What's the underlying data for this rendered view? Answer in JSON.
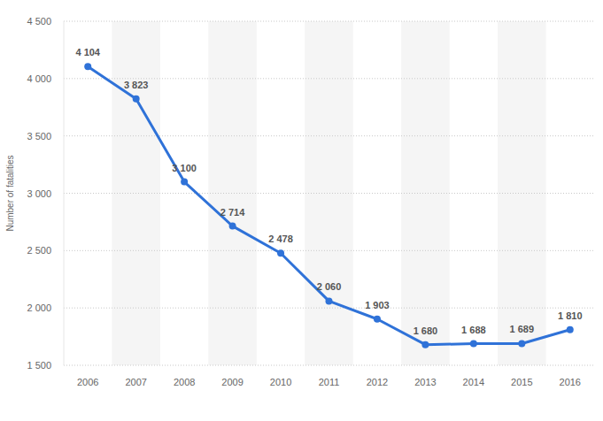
{
  "chart_data": {
    "type": "line",
    "y_label": "Number of fatalities",
    "categories": [
      "2006",
      "2007",
      "2008",
      "2009",
      "2010",
      "2011",
      "2012",
      "2013",
      "2014",
      "2015",
      "2016"
    ],
    "values": [
      4104,
      3823,
      3100,
      2714,
      2478,
      2060,
      1903,
      1680,
      1688,
      1689,
      1810
    ],
    "value_labels": [
      "4 104",
      "3 823",
      "3 100",
      "2 714",
      "2 478",
      "2 060",
      "1 903",
      "1 680",
      "1 688",
      "1 689",
      "1 810"
    ],
    "color": "#2f72d8",
    "marker": "circle",
    "line_style": "solid",
    "data_labels": true,
    "grid": true,
    "ylim": [
      1500,
      4500
    ],
    "yticks": [
      {
        "value": 1500,
        "label": "1 500"
      },
      {
        "value": 2000,
        "label": "2 000"
      },
      {
        "value": 2500,
        "label": "2 500"
      },
      {
        "value": 3000,
        "label": "3 000"
      },
      {
        "value": 3500,
        "label": "3 500"
      },
      {
        "value": 4000,
        "label": "4 000"
      },
      {
        "value": 4500,
        "label": "4 500"
      }
    ]
  }
}
